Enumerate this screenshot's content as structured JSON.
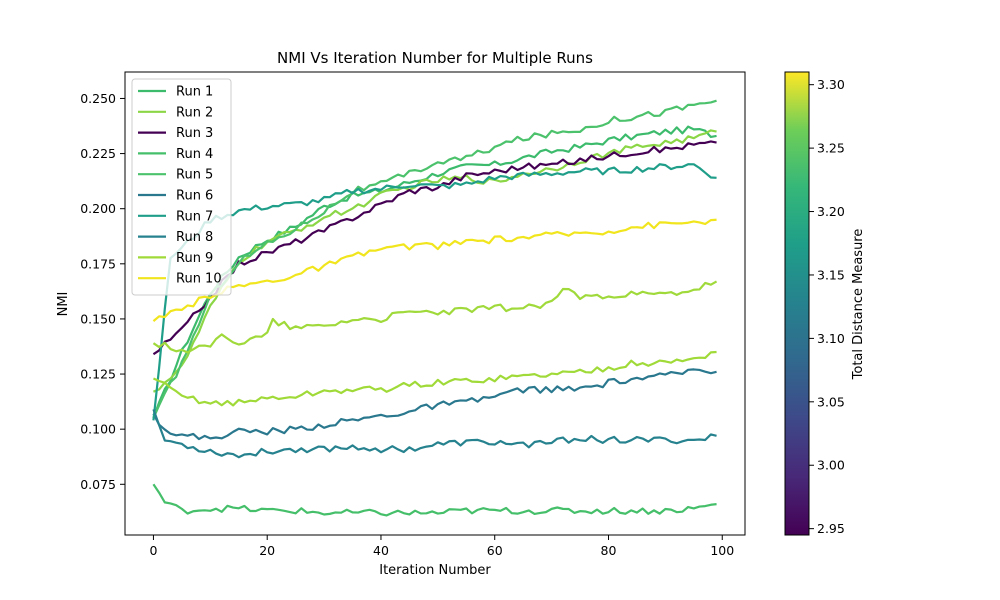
{
  "chart_data": {
    "type": "line",
    "title": "NMI Vs Iteration Number for Multiple Runs",
    "xlabel": "Iteration Number",
    "ylabel": "NMI",
    "xlim": [
      -5,
      104
    ],
    "ylim": [
      0.052,
      0.262
    ],
    "xticks": [
      0,
      20,
      40,
      60,
      80,
      100
    ],
    "yticks": [
      0.075,
      0.1,
      0.125,
      0.15,
      0.175,
      0.2,
      0.225,
      0.25
    ],
    "ytick_labels": [
      "0.075",
      "0.100",
      "0.125",
      "0.150",
      "0.175",
      "0.200",
      "0.225",
      "0.250"
    ],
    "legend_position": "upper left",
    "grid": false,
    "colorbar": {
      "label": "Total Distance Measure",
      "min": 2.945,
      "max": 3.31,
      "ticks": [
        2.95,
        3.0,
        3.05,
        3.1,
        3.15,
        3.2,
        3.25,
        3.3
      ],
      "tick_labels": [
        "2.95",
        "3.00",
        "3.05",
        "3.10",
        "3.15",
        "3.20",
        "3.25",
        "3.30"
      ],
      "colormap": "viridis"
    },
    "series": [
      {
        "name": "Run 1",
        "color": "#3dbb6d",
        "points": [
          [
            0,
            0.105
          ],
          [
            5,
            0.135
          ],
          [
            10,
            0.162
          ],
          [
            15,
            0.178
          ],
          [
            20,
            0.186
          ],
          [
            25,
            0.192
          ],
          [
            30,
            0.201
          ],
          [
            35,
            0.206
          ],
          [
            40,
            0.208
          ],
          [
            45,
            0.212
          ],
          [
            50,
            0.216
          ],
          [
            55,
            0.219
          ],
          [
            60,
            0.22
          ],
          [
            65,
            0.223
          ],
          [
            70,
            0.226
          ],
          [
            75,
            0.228
          ],
          [
            80,
            0.231
          ],
          [
            85,
            0.233
          ],
          [
            90,
            0.235
          ],
          [
            95,
            0.236
          ],
          [
            99,
            0.233
          ]
        ]
      },
      {
        "name": "Run 2",
        "color": "#8bd646",
        "points": [
          [
            0,
            0.117
          ],
          [
            5,
            0.128
          ],
          [
            10,
            0.155
          ],
          [
            15,
            0.176
          ],
          [
            20,
            0.185
          ],
          [
            25,
            0.19
          ],
          [
            30,
            0.196
          ],
          [
            35,
            0.2
          ],
          [
            40,
            0.206
          ],
          [
            45,
            0.21
          ],
          [
            50,
            0.213
          ],
          [
            55,
            0.214
          ],
          [
            60,
            0.212
          ],
          [
            65,
            0.216
          ],
          [
            70,
            0.218
          ],
          [
            75,
            0.222
          ],
          [
            80,
            0.225
          ],
          [
            85,
            0.228
          ],
          [
            90,
            0.23
          ],
          [
            95,
            0.232
          ],
          [
            99,
            0.235
          ]
        ]
      },
      {
        "name": "Run 3",
        "color": "#440154",
        "points": [
          [
            0,
            0.134
          ],
          [
            5,
            0.145
          ],
          [
            10,
            0.16
          ],
          [
            15,
            0.175
          ],
          [
            20,
            0.18
          ],
          [
            25,
            0.185
          ],
          [
            30,
            0.19
          ],
          [
            35,
            0.196
          ],
          [
            40,
            0.202
          ],
          [
            45,
            0.208
          ],
          [
            50,
            0.21
          ],
          [
            55,
            0.215
          ],
          [
            60,
            0.217
          ],
          [
            65,
            0.219
          ],
          [
            70,
            0.22
          ],
          [
            75,
            0.222
          ],
          [
            80,
            0.224
          ],
          [
            85,
            0.226
          ],
          [
            90,
            0.227
          ],
          [
            95,
            0.229
          ],
          [
            99,
            0.23
          ]
        ]
      },
      {
        "name": "Run 4",
        "color": "#45bf6a",
        "points": [
          [
            0,
            0.075
          ],
          [
            2,
            0.067
          ],
          [
            5,
            0.063
          ],
          [
            10,
            0.064
          ],
          [
            15,
            0.064
          ],
          [
            20,
            0.063
          ],
          [
            25,
            0.063
          ],
          [
            30,
            0.062
          ],
          [
            35,
            0.062
          ],
          [
            40,
            0.062
          ],
          [
            45,
            0.062
          ],
          [
            50,
            0.062
          ],
          [
            55,
            0.063
          ],
          [
            60,
            0.063
          ],
          [
            65,
            0.063
          ],
          [
            70,
            0.063
          ],
          [
            75,
            0.063
          ],
          [
            80,
            0.063
          ],
          [
            85,
            0.063
          ],
          [
            90,
            0.063
          ],
          [
            95,
            0.064
          ],
          [
            99,
            0.066
          ]
        ]
      },
      {
        "name": "Run 5",
        "color": "#4cc26c",
        "points": [
          [
            0,
            0.105
          ],
          [
            5,
            0.13
          ],
          [
            10,
            0.16
          ],
          [
            15,
            0.176
          ],
          [
            20,
            0.184
          ],
          [
            25,
            0.191
          ],
          [
            30,
            0.199
          ],
          [
            35,
            0.208
          ],
          [
            40,
            0.211
          ],
          [
            45,
            0.216
          ],
          [
            50,
            0.221
          ],
          [
            55,
            0.223
          ],
          [
            60,
            0.228
          ],
          [
            65,
            0.232
          ],
          [
            70,
            0.234
          ],
          [
            75,
            0.236
          ],
          [
            80,
            0.24
          ],
          [
            85,
            0.242
          ],
          [
            90,
            0.244
          ],
          [
            95,
            0.247
          ],
          [
            99,
            0.249
          ]
        ]
      },
      {
        "name": "Run 6",
        "color": "#2a788e",
        "points": [
          [
            0,
            0.107
          ],
          [
            2,
            0.1
          ],
          [
            5,
            0.097
          ],
          [
            10,
            0.096
          ],
          [
            15,
            0.099
          ],
          [
            20,
            0.099
          ],
          [
            25,
            0.1
          ],
          [
            30,
            0.102
          ],
          [
            35,
            0.104
          ],
          [
            40,
            0.106
          ],
          [
            45,
            0.108
          ],
          [
            50,
            0.111
          ],
          [
            55,
            0.112
          ],
          [
            60,
            0.115
          ],
          [
            65,
            0.118
          ],
          [
            70,
            0.118
          ],
          [
            75,
            0.118
          ],
          [
            80,
            0.121
          ],
          [
            85,
            0.123
          ],
          [
            90,
            0.124
          ],
          [
            95,
            0.127
          ],
          [
            99,
            0.126
          ]
        ]
      },
      {
        "name": "Run 7",
        "color": "#1f9e89",
        "points": [
          [
            0,
            0.104
          ],
          [
            3,
            0.178
          ],
          [
            5,
            0.182
          ],
          [
            10,
            0.195
          ],
          [
            15,
            0.199
          ],
          [
            20,
            0.201
          ],
          [
            25,
            0.202
          ],
          [
            30,
            0.204
          ],
          [
            35,
            0.208
          ],
          [
            40,
            0.209
          ],
          [
            45,
            0.211
          ],
          [
            50,
            0.21
          ],
          [
            55,
            0.211
          ],
          [
            60,
            0.214
          ],
          [
            65,
            0.215
          ],
          [
            70,
            0.216
          ],
          [
            75,
            0.217
          ],
          [
            80,
            0.217
          ],
          [
            85,
            0.218
          ],
          [
            90,
            0.219
          ],
          [
            95,
            0.22
          ],
          [
            99,
            0.214
          ]
        ]
      },
      {
        "name": "Run 8",
        "color": "#26828e",
        "points": [
          [
            0,
            0.109
          ],
          [
            2,
            0.095
          ],
          [
            5,
            0.093
          ],
          [
            10,
            0.09
          ],
          [
            15,
            0.088
          ],
          [
            20,
            0.09
          ],
          [
            25,
            0.091
          ],
          [
            30,
            0.091
          ],
          [
            35,
            0.092
          ],
          [
            40,
            0.091
          ],
          [
            45,
            0.091
          ],
          [
            50,
            0.093
          ],
          [
            55,
            0.094
          ],
          [
            60,
            0.094
          ],
          [
            65,
            0.093
          ],
          [
            70,
            0.094
          ],
          [
            75,
            0.096
          ],
          [
            80,
            0.095
          ],
          [
            85,
            0.095
          ],
          [
            90,
            0.095
          ],
          [
            95,
            0.095
          ],
          [
            99,
            0.097
          ]
        ]
      },
      {
        "name": "Run 9",
        "color": "#a0da39",
        "points": [
          [
            0,
            0.123
          ],
          [
            3,
            0.118
          ],
          [
            5,
            0.115
          ],
          [
            10,
            0.112
          ],
          [
            15,
            0.112
          ],
          [
            20,
            0.114
          ],
          [
            25,
            0.115
          ],
          [
            30,
            0.117
          ],
          [
            35,
            0.118
          ],
          [
            40,
            0.118
          ],
          [
            45,
            0.12
          ],
          [
            50,
            0.121
          ],
          [
            55,
            0.122
          ],
          [
            60,
            0.123
          ],
          [
            65,
            0.124
          ],
          [
            70,
            0.125
          ],
          [
            75,
            0.126
          ],
          [
            80,
            0.128
          ],
          [
            85,
            0.13
          ],
          [
            90,
            0.13
          ],
          [
            95,
            0.132
          ],
          [
            99,
            0.135
          ]
        ]
      },
      {
        "name": "Run 10",
        "color": "#f1e51d",
        "points": [
          [
            0,
            0.149
          ],
          [
            5,
            0.154
          ],
          [
            10,
            0.161
          ],
          [
            15,
            0.165
          ],
          [
            20,
            0.167
          ],
          [
            25,
            0.17
          ],
          [
            30,
            0.174
          ],
          [
            35,
            0.178
          ],
          [
            40,
            0.182
          ],
          [
            45,
            0.183
          ],
          [
            50,
            0.183
          ],
          [
            55,
            0.185
          ],
          [
            60,
            0.186
          ],
          [
            65,
            0.187
          ],
          [
            70,
            0.188
          ],
          [
            75,
            0.189
          ],
          [
            80,
            0.19
          ],
          [
            85,
            0.192
          ],
          [
            90,
            0.193
          ],
          [
            95,
            0.194
          ],
          [
            99,
            0.195
          ]
        ]
      },
      {
        "name": "",
        "color": "#9fd93a",
        "points": [
          [
            0,
            0.139
          ],
          [
            5,
            0.136
          ],
          [
            10,
            0.137
          ],
          [
            12,
            0.144
          ],
          [
            15,
            0.139
          ],
          [
            20,
            0.143
          ],
          [
            21,
            0.149
          ],
          [
            25,
            0.146
          ],
          [
            30,
            0.147
          ],
          [
            35,
            0.15
          ],
          [
            40,
            0.15
          ],
          [
            45,
            0.153
          ],
          [
            50,
            0.153
          ],
          [
            55,
            0.154
          ],
          [
            60,
            0.155
          ],
          [
            65,
            0.155
          ],
          [
            70,
            0.157
          ],
          [
            72,
            0.164
          ],
          [
            75,
            0.16
          ],
          [
            80,
            0.161
          ],
          [
            85,
            0.161
          ],
          [
            90,
            0.161
          ],
          [
            95,
            0.163
          ],
          [
            99,
            0.167
          ]
        ]
      }
    ]
  }
}
